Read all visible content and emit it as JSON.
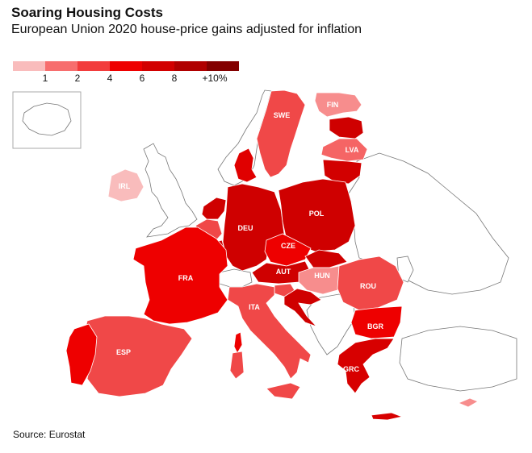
{
  "title": "Soaring Housing Costs",
  "subtitle": "European Union 2020 house-price gains adjusted for inflation",
  "legend": {
    "labels": [
      "1",
      "2",
      "4",
      "6",
      "8",
      "+10%"
    ],
    "colors": [
      "#f9bcbc",
      "#f76e6e",
      "#f23c3c",
      "#ee0000",
      "#d20000",
      "#b00000",
      "#830000"
    ]
  },
  "source": "Source: Eurostat",
  "countries": {
    "SWE": {
      "label": "SWE",
      "color": "#f04848"
    },
    "FIN": {
      "label": "FIN",
      "color": "#f78d8d"
    },
    "LVA": {
      "label": "LVA",
      "color": "#f56565"
    },
    "IRL": {
      "label": "IRL",
      "color": "#f9bcbc"
    },
    "DEU": {
      "label": "DEU",
      "color": "#cf0000"
    },
    "POL": {
      "label": "POL",
      "color": "#cf0000"
    },
    "CZE": {
      "label": "CZE",
      "color": "#ee0000"
    },
    "AUT": {
      "label": "AUT",
      "color": "#cf0000"
    },
    "HUN": {
      "label": "HUN",
      "color": "#f78d8d"
    },
    "ROU": {
      "label": "ROU",
      "color": "#f04848"
    },
    "FRA": {
      "label": "FRA",
      "color": "#ee0000"
    },
    "ITA": {
      "label": "ITA",
      "color": "#f04848"
    },
    "ESP": {
      "label": "ESP",
      "color": "#f04848"
    },
    "BGR": {
      "label": "BGR",
      "color": "#ee0000"
    },
    "GRC": {
      "label": "GRC",
      "color": "#d70000"
    }
  },
  "unlabeled_colors": {
    "DNK": "#e00000",
    "EST": "#cf0000",
    "LTU": "#d20000",
    "NLD": "#cf0000",
    "BEL": "#f04848",
    "LUX": "#cf0000",
    "SVK": "#cf0000",
    "SVN": "#f04848",
    "HRV": "#cf0000",
    "PRT": "#ee0000",
    "CYP": "#f78d8d",
    "MLT": "#f04848"
  }
}
